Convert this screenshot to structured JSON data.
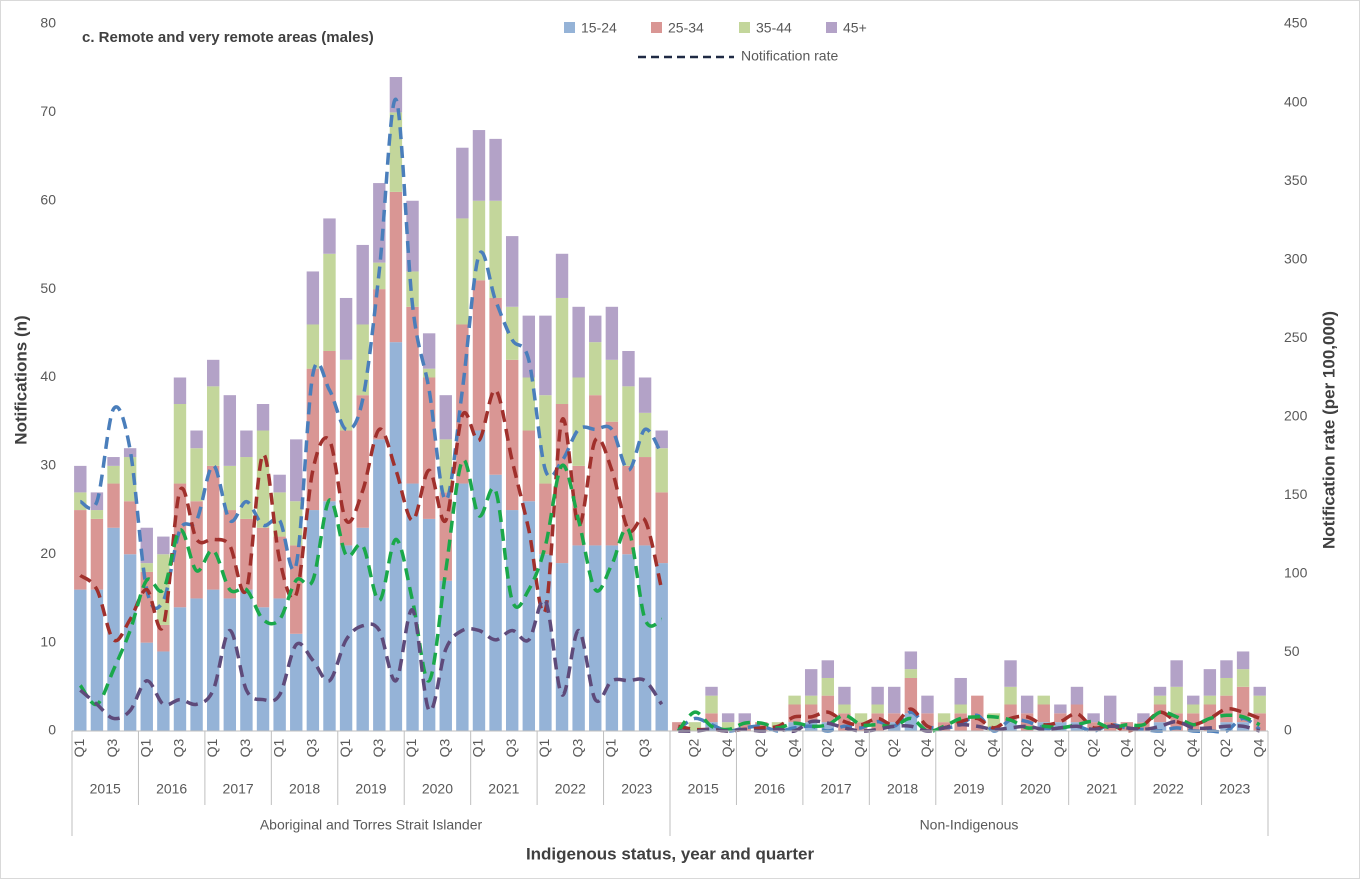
{
  "chart_data": {
    "type": "bar",
    "title": "c. Remote and very remote areas (males)",
    "y_label": "Notifications (n)",
    "y2_label": "Notification rate (per 100,000)",
    "x_label": "Indigenous status, year and quarter",
    "categories": [
      "Q1",
      null,
      "Q3",
      null,
      "Q1",
      null,
      "Q3",
      null,
      "Q1",
      null,
      "Q3",
      null,
      "Q1",
      null,
      "Q3",
      null,
      "Q1",
      null,
      "Q3",
      null,
      "Q1",
      null,
      "Q3",
      null,
      "Q1",
      null,
      "Q3",
      null,
      "Q1",
      null,
      "Q3",
      null,
      "Q1",
      null,
      "Q3",
      null,
      null,
      "Q2",
      null,
      "Q4",
      null,
      "Q2",
      null,
      "Q4",
      null,
      "Q2",
      null,
      "Q4",
      null,
      "Q2",
      null,
      "Q4",
      null,
      "Q2",
      null,
      "Q4",
      null,
      "Q2",
      null,
      "Q4",
      null,
      "Q2",
      null,
      "Q4",
      null,
      "Q2",
      null,
      "Q4",
      null,
      "Q2",
      null,
      "Q4"
    ],
    "years": [
      "2015",
      "2016",
      "2017",
      "2018",
      "2019",
      "2020",
      "2021",
      "2022",
      "2023",
      "2015",
      "2016",
      "2017",
      "2018",
      "2019",
      "2020",
      "2021",
      "2022",
      "2023"
    ],
    "groups": [
      "Aboriginal and Torres Strait Islander",
      "Non-Indigenous"
    ],
    "series": [
      {
        "name": "15-24",
        "color": "#95b3d7",
        "values": [
          16,
          16,
          23,
          20,
          10,
          9,
          14,
          15,
          16,
          15,
          16,
          14,
          15,
          11,
          25,
          26,
          21,
          23,
          33,
          44,
          28,
          24,
          17,
          28,
          34,
          29,
          25,
          26,
          20,
          19,
          21,
          21,
          21,
          20,
          21,
          19,
          0,
          0,
          1,
          0,
          0,
          0,
          0,
          1,
          1,
          1,
          0,
          0,
          0,
          1,
          2,
          0,
          0,
          0,
          0,
          0,
          1,
          0,
          1,
          1,
          1,
          0,
          0,
          0,
          0,
          1,
          0,
          0,
          0,
          1,
          1,
          0
        ]
      },
      {
        "name": "25-34",
        "color": "#d99694",
        "values": [
          9,
          8,
          5,
          6,
          8,
          3,
          14,
          11,
          14,
          10,
          8,
          9,
          7,
          10,
          16,
          17,
          13,
          15,
          17,
          17,
          20,
          16,
          10,
          18,
          17,
          20,
          17,
          8,
          8,
          18,
          9,
          17,
          14,
          10,
          10,
          8,
          1,
          0,
          1,
          0,
          1,
          1,
          0,
          2,
          2,
          3,
          2,
          1,
          2,
          1,
          4,
          2,
          1,
          2,
          4,
          0,
          2,
          2,
          2,
          1,
          2,
          1,
          1,
          1,
          1,
          2,
          2,
          2,
          3,
          3,
          4,
          2
        ]
      },
      {
        "name": "35-44",
        "color": "#c3d69b",
        "values": [
          2,
          1,
          2,
          5,
          1,
          8,
          9,
          6,
          9,
          5,
          7,
          11,
          5,
          5,
          5,
          11,
          8,
          8,
          3,
          9,
          4,
          1,
          6,
          12,
          9,
          11,
          6,
          6,
          10,
          12,
          10,
          6,
          7,
          9,
          5,
          5,
          0,
          1,
          2,
          1,
          0,
          0,
          1,
          1,
          1,
          2,
          1,
          1,
          1,
          0,
          1,
          0,
          1,
          1,
          0,
          2,
          2,
          0,
          1,
          0,
          0,
          0,
          0,
          0,
          0,
          1,
          3,
          1,
          1,
          2,
          2,
          2
        ]
      },
      {
        "name": "45+",
        "color": "#b3a2c7",
        "values": [
          3,
          2,
          1,
          1,
          4,
          2,
          3,
          2,
          3,
          8,
          3,
          3,
          2,
          7,
          6,
          4,
          7,
          9,
          9,
          4,
          8,
          4,
          5,
          8,
          8,
          7,
          8,
          7,
          9,
          5,
          8,
          3,
          6,
          4,
          4,
          2,
          0,
          0,
          1,
          1,
          1,
          0,
          0,
          0,
          3,
          2,
          2,
          0,
          2,
          3,
          2,
          2,
          0,
          3,
          0,
          0,
          3,
          2,
          0,
          1,
          2,
          1,
          3,
          0,
          1,
          1,
          3,
          1,
          3,
          2,
          2,
          1
        ]
      }
    ],
    "rate_legend": "Notification rate",
    "rate_series": [
      {
        "color": "#4a7ebb",
        "axis": "y2",
        "values": [
          146,
          146,
          205,
          179,
          90,
          83,
          128,
          134,
          169,
          134,
          146,
          131,
          134,
          106,
          227,
          217,
          192,
          211,
          293,
          402,
          271,
          217,
          147,
          217,
          303,
          274,
          249,
          236,
          166,
          172,
          192,
          192,
          192,
          166,
          192,
          176,
          1,
          8,
          4,
          0,
          2,
          3,
          0,
          2,
          3,
          0,
          3,
          2,
          6,
          3,
          12,
          3,
          2,
          4,
          10,
          0,
          7,
          6,
          2,
          2,
          3,
          0,
          4,
          2,
          1,
          0,
          2,
          0,
          0,
          0,
          8,
          1
        ]
      },
      {
        "color": "#a0302c",
        "axis": "y2",
        "values": [
          99,
          90,
          58,
          71,
          90,
          67,
          153,
          122,
          122,
          118,
          90,
          176,
          109,
          87,
          166,
          185,
          134,
          153,
          192,
          166,
          134,
          166,
          134,
          201,
          185,
          217,
          172,
          128,
          77,
          198,
          131,
          185,
          166,
          128,
          134,
          90,
          3,
          1,
          1,
          0,
          1,
          2,
          3,
          9,
          9,
          12,
          6,
          4,
          8,
          4,
          14,
          3,
          2,
          6,
          8,
          2,
          8,
          9,
          4,
          6,
          11,
          2,
          4,
          0,
          4,
          12,
          6,
          4,
          8,
          14,
          12,
          8
        ]
      },
      {
        "color": "#1aa84a",
        "axis": "y2",
        "values": [
          29,
          17,
          39,
          64,
          96,
          90,
          128,
          102,
          115,
          90,
          90,
          71,
          71,
          96,
          96,
          147,
          112,
          118,
          83,
          122,
          83,
          32,
          102,
          172,
          137,
          153,
          83,
          90,
          118,
          169,
          134,
          90,
          106,
          128,
          71,
          71,
          0,
          12,
          3,
          1,
          5,
          5,
          2,
          5,
          3,
          4,
          10,
          4,
          4,
          3,
          8,
          0,
          3,
          8,
          9,
          9,
          7,
          2,
          3,
          2,
          4,
          6,
          2,
          4,
          4,
          12,
          9,
          4,
          8,
          10,
          9,
          4
        ]
      },
      {
        "color": "#5e4a7a",
        "axis": "y2",
        "values": [
          26,
          17,
          8,
          13,
          32,
          17,
          20,
          17,
          26,
          64,
          26,
          20,
          23,
          55,
          45,
          32,
          58,
          67,
          64,
          32,
          77,
          13,
          52,
          64,
          64,
          58,
          64,
          58,
          83,
          23,
          64,
          20,
          32,
          32,
          32,
          17,
          0,
          0,
          1,
          0,
          1,
          0,
          1,
          0,
          6,
          5,
          2,
          0,
          1,
          3,
          3,
          0,
          2,
          4,
          3,
          1,
          2,
          3,
          1,
          2,
          3,
          1,
          3,
          2,
          1,
          3,
          6,
          2,
          2,
          3,
          3,
          0
        ]
      }
    ],
    "ylim": [
      0,
      80
    ],
    "yticks": [
      0,
      10,
      20,
      30,
      40,
      50,
      60,
      70,
      80
    ],
    "y2lim": [
      0,
      450
    ],
    "y2ticks": [
      0,
      50,
      100,
      150,
      200,
      250,
      300,
      350,
      400,
      450
    ],
    "grid": false
  }
}
